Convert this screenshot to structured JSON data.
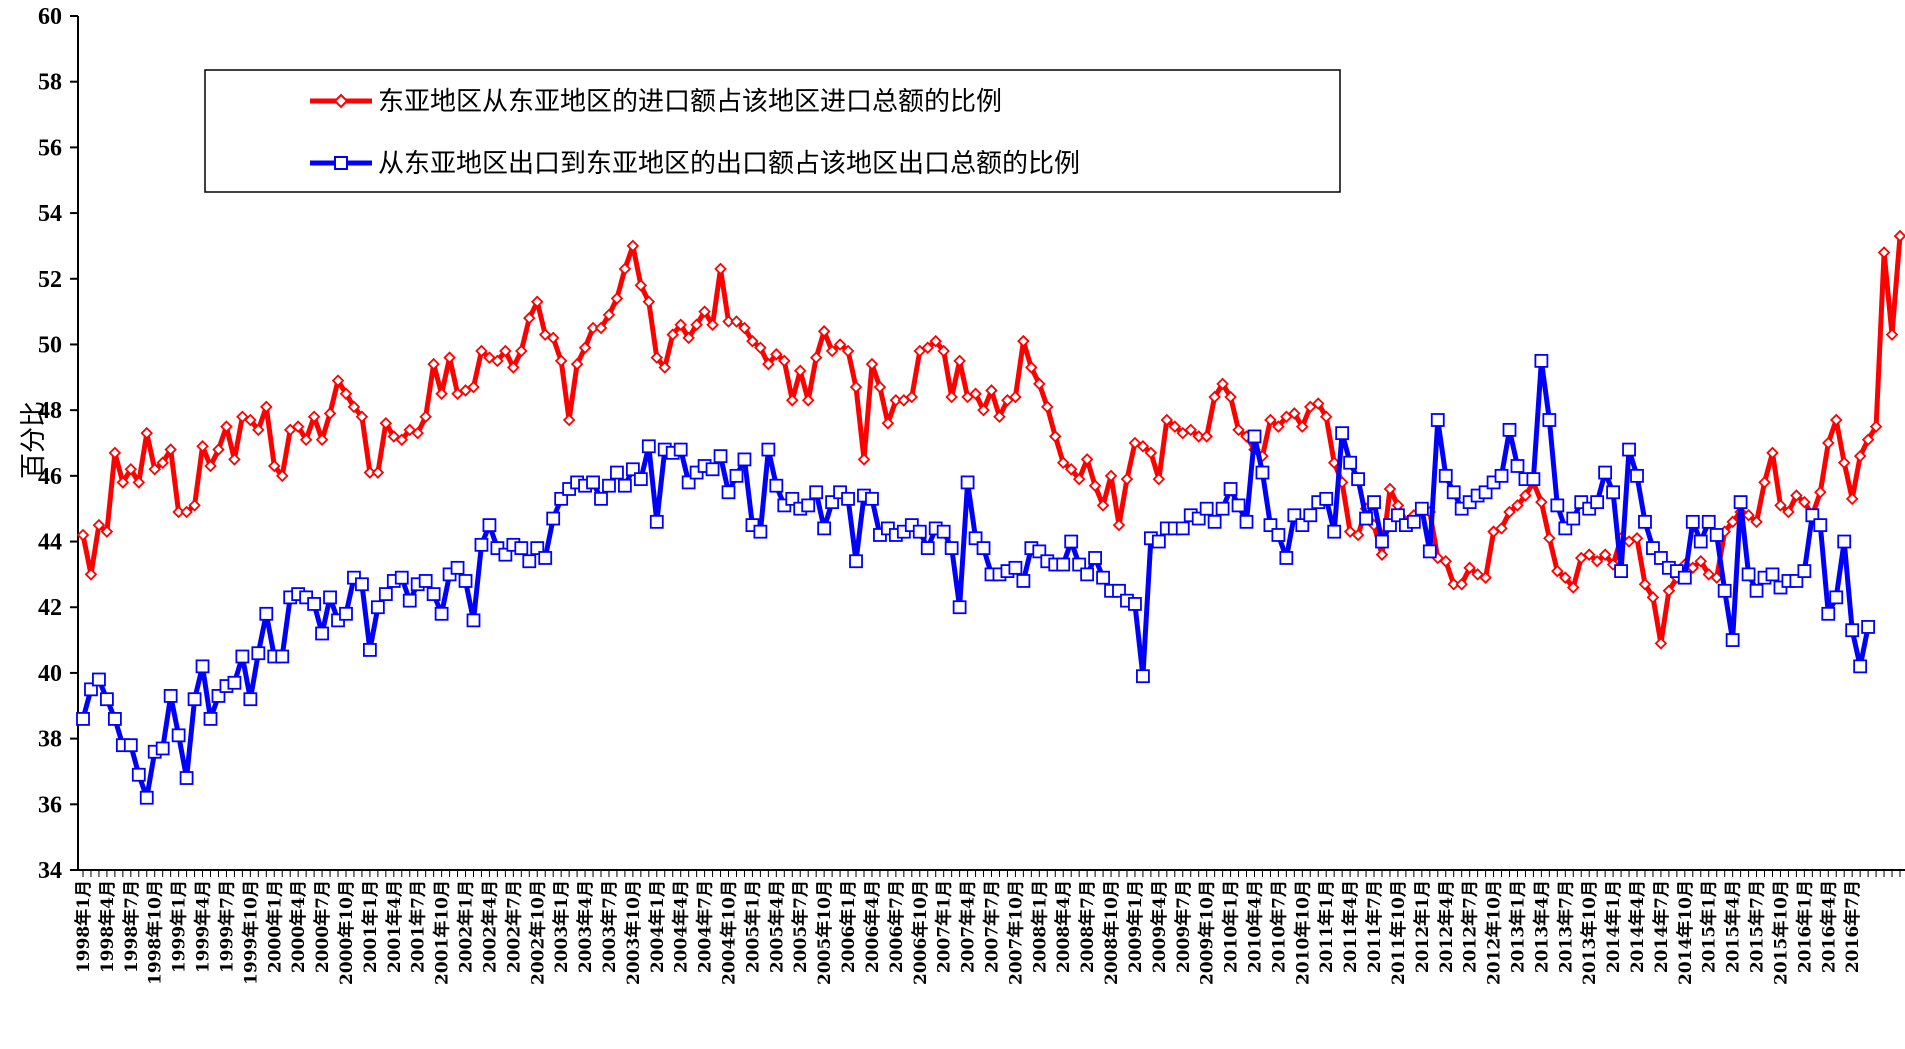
{
  "chart_data": {
    "type": "line",
    "title": "",
    "xlabel": "",
    "ylabel": "百分比",
    "ylim": [
      34,
      60
    ],
    "yticks": [
      34,
      36,
      38,
      40,
      42,
      44,
      46,
      48,
      50,
      52,
      54,
      56,
      58,
      60
    ],
    "x_range": [
      "1998-01",
      "2016-07"
    ],
    "grid": false,
    "legend_position": "top-left",
    "xtick_labels": [
      "1998年1月",
      "1998年4月",
      "1998年7月",
      "1998年10月",
      "1999年1月",
      "1999年4月",
      "1999年7月",
      "1999年10月",
      "2000年1月",
      "2000年4月",
      "2000年7月",
      "2000年10月",
      "2001年1月",
      "2001年4月",
      "2001年7月",
      "2001年10月",
      "2002年1月",
      "2002年4月",
      "2002年7月",
      "2002年10月",
      "2003年1月",
      "2003年4月",
      "2003年7月",
      "2003年10月",
      "2004年1月",
      "2004年4月",
      "2004年7月",
      "2004年10月",
      "2005年1月",
      "2005年4月",
      "2005年7月",
      "2005年10月",
      "2006年1月",
      "2006年4月",
      "2006年7月",
      "2006年10月",
      "2007年1月",
      "2007年4月",
      "2007年7月",
      "2007年10月",
      "2008年1月",
      "2008年4月",
      "2008年7月",
      "2008年10月",
      "2009年1月",
      "2009年4月",
      "2009年7月",
      "2009年10月",
      "2010年1月",
      "2010年4月",
      "2010年7月",
      "2010年10月",
      "2011年1月",
      "2011年4月",
      "2011年7月",
      "2011年10月",
      "2012年1月",
      "2012年4月",
      "2012年7月",
      "2012年10月",
      "2013年1月",
      "2013年4月",
      "2013年7月",
      "2013年10月",
      "2014年1月",
      "2014年4月",
      "2014年7月",
      "2014年10月",
      "2015年1月",
      "2015年4月",
      "2015年7月",
      "2015年10月",
      "2016年1月",
      "2016年4月",
      "2016年7月"
    ],
    "series": [
      {
        "name": "东亚地区从东亚地区的进口额占该地区进口总额的比例",
        "color": "#ff0000",
        "marker": "diamond",
        "values": [
          44.2,
          43,
          44.5,
          44.3,
          46.7,
          45.8,
          46.2,
          45.8,
          47.3,
          46.2,
          46.4,
          46.8,
          44.9,
          44.9,
          45.1,
          46.9,
          46.3,
          46.8,
          47.5,
          46.5,
          47.8,
          47.7,
          47.4,
          48.1,
          46.3,
          46,
          47.4,
          47.5,
          47.1,
          47.8,
          47.1,
          47.9,
          48.9,
          48.5,
          48.1,
          47.8,
          46.1,
          46.1,
          47.6,
          47.2,
          47.1,
          47.4,
          47.3,
          47.8,
          49.4,
          48.5,
          49.6,
          48.5,
          48.6,
          48.7,
          49.8,
          49.6,
          49.5,
          49.8,
          49.3,
          49.8,
          50.8,
          51.3,
          50.3,
          50.2,
          49.5,
          47.7,
          49.4,
          49.9,
          50.5,
          50.5,
          50.9,
          51.4,
          52.3,
          53,
          51.8,
          51.3,
          49.6,
          49.3,
          50.3,
          50.6,
          50.2,
          50.6,
          51,
          50.6,
          52.3,
          50.7,
          50.7,
          50.5,
          50.1,
          49.9,
          49.4,
          49.7,
          49.5,
          48.3,
          49.2,
          48.3,
          49.6,
          50.4,
          49.8,
          50,
          49.8,
          48.7,
          46.5,
          49.4,
          48.7,
          47.6,
          48.3,
          48.3,
          48.4,
          49.8,
          49.9,
          50.1,
          49.8,
          48.4,
          49.5,
          48.4,
          48.5,
          48,
          48.6,
          47.8,
          48.3,
          48.4,
          50.1,
          49.3,
          48.8,
          48.1,
          47.2,
          46.4,
          46.2,
          45.9,
          46.5,
          45.7,
          45.1,
          46,
          44.5,
          45.9,
          47,
          46.9,
          46.7,
          45.9,
          47.7,
          47.5,
          47.3,
          47.4,
          47.2,
          47.2,
          48.4,
          48.8,
          48.4,
          47.4,
          47.2,
          46.8,
          46.6,
          47.7,
          47.5,
          47.8,
          47.9,
          47.5,
          48.1,
          48.2,
          47.8,
          46.4,
          45.8,
          44.3,
          44.2,
          45,
          44.5,
          43.6,
          45.6,
          45.1,
          44.6,
          44.8,
          45,
          44.9,
          43.5,
          43.4,
          42.7,
          42.7,
          43.2,
          43,
          42.9,
          44.3,
          44.4,
          44.9,
          45.1,
          45.4,
          45.8,
          45.2,
          44.1,
          43.1,
          42.9,
          42.6,
          43.5,
          43.6,
          43.4,
          43.6,
          43.3,
          44.1,
          44,
          44.1,
          42.7,
          42.3,
          40.9,
          42.5,
          42.9,
          43.3,
          43.2,
          43.4,
          43,
          42.9,
          44.3,
          44.6,
          44.9,
          44.8,
          44.6,
          45.8,
          46.7,
          45.1,
          44.9,
          45.4,
          45.2,
          44.8,
          45.5,
          47,
          47.7,
          46.4,
          45.3,
          46.6,
          47.1,
          47.5,
          52.8,
          50.3,
          53.3
        ]
      },
      {
        "name": "从东亚地区出口到东亚地区的出口额占该地区出口总额的比例",
        "color": "#0000ff",
        "marker": "square",
        "values": [
          38.6,
          39.5,
          39.8,
          39.2,
          38.6,
          37.8,
          37.8,
          36.9,
          36.2,
          37.6,
          37.7,
          39.3,
          38.1,
          36.8,
          39.2,
          40.2,
          38.6,
          39.3,
          39.6,
          39.7,
          40.5,
          39.2,
          40.6,
          41.8,
          40.5,
          40.5,
          42.3,
          42.4,
          42.3,
          42.1,
          41.2,
          42.3,
          41.6,
          41.8,
          42.9,
          42.7,
          40.7,
          42,
          42.4,
          42.8,
          42.9,
          42.2,
          42.7,
          42.8,
          42.4,
          41.8,
          43,
          43.2,
          42.8,
          41.6,
          43.9,
          44.5,
          43.8,
          43.6,
          43.9,
          43.8,
          43.4,
          43.8,
          43.5,
          44.7,
          45.3,
          45.6,
          45.8,
          45.7,
          45.8,
          45.3,
          45.7,
          46.1,
          45.7,
          46.2,
          45.9,
          46.9,
          44.6,
          46.8,
          46.7,
          46.8,
          45.8,
          46.1,
          46.3,
          46.2,
          46.6,
          45.5,
          46,
          46.5,
          44.5,
          44.3,
          46.8,
          45.7,
          45.1,
          45.3,
          45,
          45.1,
          45.5,
          44.4,
          45.2,
          45.5,
          45.3,
          43.4,
          45.4,
          45.3,
          44.2,
          44.4,
          44.2,
          44.3,
          44.5,
          44.3,
          43.8,
          44.4,
          44.3,
          43.8,
          42,
          45.8,
          44.1,
          43.8,
          43,
          43,
          43.1,
          43.2,
          42.8,
          43.8,
          43.7,
          43.4,
          43.3,
          43.3,
          44,
          43.3,
          43,
          43.5,
          42.9,
          42.5,
          42.5,
          42.2,
          42.1,
          39.9,
          44.1,
          44,
          44.4,
          44.4,
          44.4,
          44.8,
          44.7,
          45,
          44.6,
          45,
          45.6,
          45.1,
          44.6,
          47.2,
          46.1,
          44.5,
          44.2,
          43.5,
          44.8,
          44.5,
          44.8,
          45.2,
          45.3,
          44.3,
          47.3,
          46.4,
          45.9,
          44.7,
          45.2,
          44,
          44.5,
          44.8,
          44.5,
          44.6,
          45,
          43.7,
          47.7,
          46,
          45.5,
          45,
          45.2,
          45.4,
          45.5,
          45.8,
          46,
          47.4,
          46.3,
          45.9,
          45.9,
          49.5,
          47.7,
          45.1,
          44.4,
          44.7,
          45.2,
          45,
          45.2,
          46.1,
          45.5,
          43.1,
          46.8,
          46,
          44.6,
          43.8,
          43.5,
          43.2,
          43.1,
          42.9,
          44.6,
          44,
          44.6,
          44.2,
          42.5,
          41,
          45.2,
          43,
          42.5,
          42.9,
          43,
          42.6,
          42.8,
          42.8,
          43.1,
          44.8,
          44.5,
          41.8,
          42.3,
          44,
          41.3,
          40.2,
          41.4
        ]
      }
    ]
  }
}
